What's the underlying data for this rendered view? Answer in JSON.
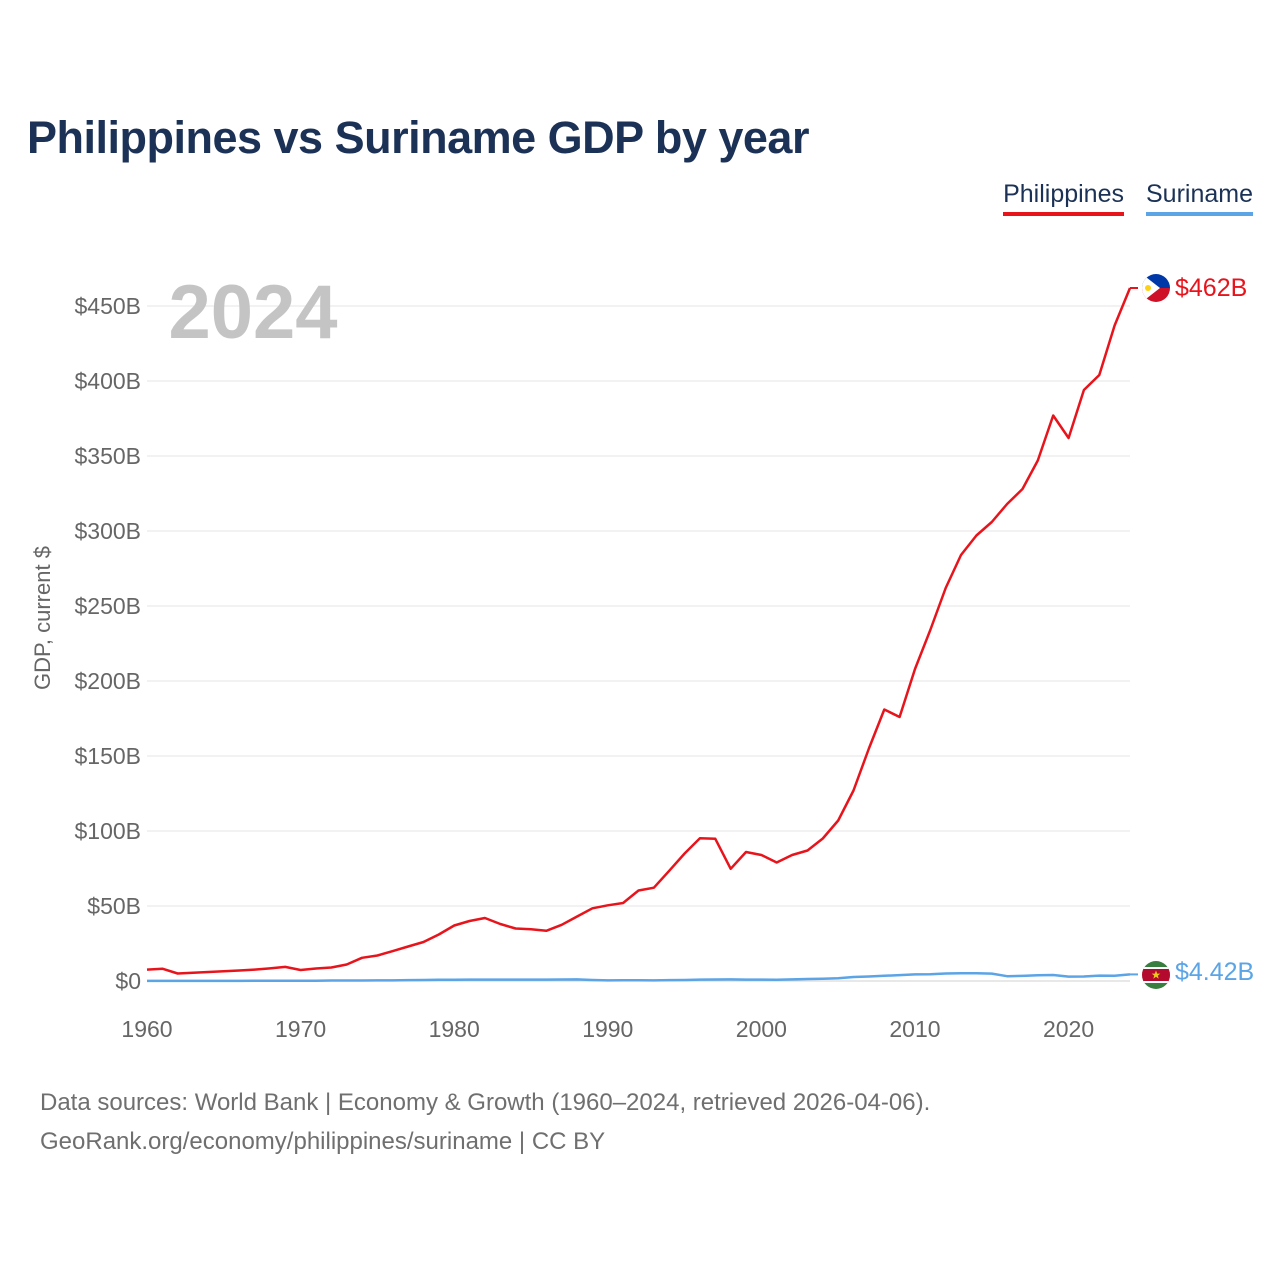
{
  "title": "Philippines vs Suriname GDP by year",
  "legend": [
    {
      "label": "Philippines",
      "color": "#e8141c"
    },
    {
      "label": "Suriname",
      "color": "#5ba4e6"
    }
  ],
  "chart_data": {
    "type": "line",
    "title": "Philippines vs Suriname GDP by year",
    "year_label": "2024",
    "ylabel": "GDP, current $",
    "xlabel": "",
    "xlim": [
      1960,
      2024
    ],
    "ylim": [
      0,
      462
    ],
    "x_ticks": [
      1960,
      1970,
      1980,
      1990,
      2000,
      2010,
      2020
    ],
    "y_ticks": [
      {
        "value": 0,
        "label": "$0"
      },
      {
        "value": 50,
        "label": "$50B"
      },
      {
        "value": 100,
        "label": "$100B"
      },
      {
        "value": 150,
        "label": "$150B"
      },
      {
        "value": 200,
        "label": "$200B"
      },
      {
        "value": 250,
        "label": "$250B"
      },
      {
        "value": 300,
        "label": "$300B"
      },
      {
        "value": 350,
        "label": "$350B"
      },
      {
        "value": 400,
        "label": "$400B"
      },
      {
        "value": 450,
        "label": "$450B"
      }
    ],
    "grid": true,
    "x": [
      1960,
      1961,
      1962,
      1963,
      1964,
      1965,
      1966,
      1967,
      1968,
      1969,
      1970,
      1971,
      1972,
      1973,
      1974,
      1975,
      1976,
      1977,
      1978,
      1979,
      1980,
      1981,
      1982,
      1983,
      1984,
      1985,
      1986,
      1987,
      1988,
      1989,
      1990,
      1991,
      1992,
      1993,
      1994,
      1995,
      1996,
      1997,
      1998,
      1999,
      2000,
      2001,
      2002,
      2003,
      2004,
      2005,
      2006,
      2007,
      2008,
      2009,
      2010,
      2011,
      2012,
      2013,
      2014,
      2015,
      2016,
      2017,
      2018,
      2019,
      2020,
      2021,
      2022,
      2023,
      2024
    ],
    "series": [
      {
        "name": "Philippines",
        "color": "#e8141c",
        "end_label": "$462B",
        "values": [
          7.6,
          8.2,
          5.0,
          5.5,
          6.0,
          6.5,
          7.0,
          7.6,
          8.4,
          9.4,
          7.3,
          8.3,
          9.0,
          11.0,
          15.5,
          17.0,
          19.9,
          23.0,
          26.0,
          31.0,
          37.0,
          40.0,
          42.0,
          38.0,
          35.0,
          34.5,
          33.5,
          37.5,
          43.0,
          48.5,
          50.5,
          52.0,
          60.3,
          62.2,
          73.5,
          85.0,
          95.2,
          94.8,
          74.8,
          86.0,
          84.0,
          79.0,
          84.0,
          87.0,
          95.0,
          107.0,
          127.0,
          155.0,
          181.0,
          176.0,
          208.0,
          234.0,
          262.0,
          284.0,
          297.0,
          306.0,
          318.0,
          328.0,
          347.0,
          377.0,
          362.0,
          394.0,
          404.0,
          437.0,
          462.0
        ]
      },
      {
        "name": "Suriname",
        "color": "#5ba4e6",
        "end_label": "$4.42B",
        "values": [
          0.1,
          0.1,
          0.1,
          0.1,
          0.1,
          0.1,
          0.1,
          0.2,
          0.2,
          0.2,
          0.2,
          0.2,
          0.3,
          0.3,
          0.3,
          0.4,
          0.4,
          0.6,
          0.7,
          0.8,
          0.8,
          0.9,
          0.9,
          0.9,
          0.9,
          0.9,
          0.9,
          1.0,
          1.1,
          0.7,
          0.4,
          0.5,
          0.5,
          0.4,
          0.6,
          0.7,
          0.9,
          1.0,
          1.1,
          0.9,
          0.9,
          0.8,
          1.1,
          1.3,
          1.5,
          1.8,
          2.7,
          3.0,
          3.5,
          3.9,
          4.4,
          4.5,
          5.0,
          5.2,
          5.2,
          4.9,
          3.2,
          3.4,
          3.8,
          4.0,
          2.9,
          3.0,
          3.6,
          3.5,
          4.4
        ]
      }
    ]
  },
  "source": {
    "line1": "Data sources: World Bank | Economy & Growth (1960–2024, retrieved 2026-04-06).",
    "line2": "GeoRank.org/economy/philippines/suriname | CC BY"
  }
}
